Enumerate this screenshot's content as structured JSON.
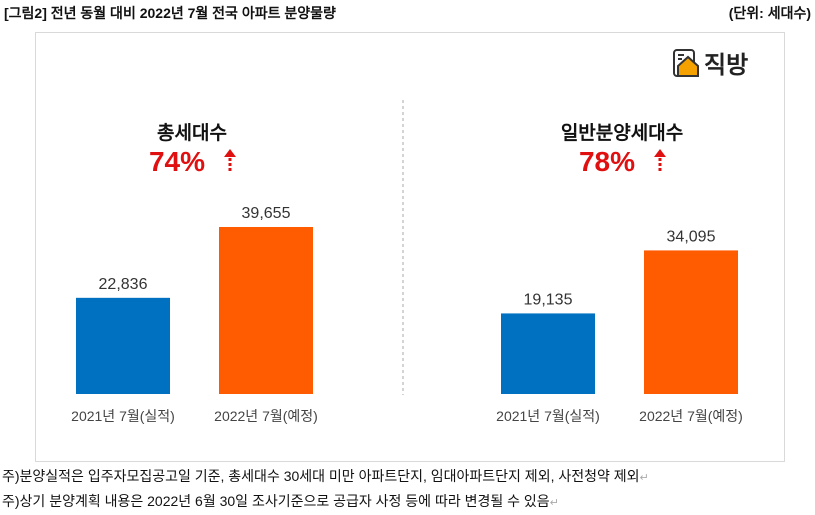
{
  "header": {
    "title": "[그림2] 전년 동월 대비 2022년 7월 전국 아파트 분양물량",
    "unit": "(단위: 세대수)"
  },
  "logo": {
    "text": "직방"
  },
  "colors": {
    "actual": "#0070C0",
    "planned": "#FF5B00",
    "increase": "#E01010"
  },
  "chart_data": [
    {
      "type": "bar",
      "title": "총세대수",
      "change": "74%",
      "change_icon": "dashed-up-arrow",
      "categories": [
        "2021년 7월(실적)",
        "2022년 7월(예정)"
      ],
      "values": [
        22836,
        39655
      ],
      "labels": [
        "22,836",
        "39,655"
      ]
    },
    {
      "type": "bar",
      "title": "일반분양세대수",
      "change": "78%",
      "change_icon": "dashed-up-arrow",
      "categories": [
        "2021년 7월(실적)",
        "2022년 7월(예정)"
      ],
      "values": [
        19135,
        34095
      ],
      "labels": [
        "19,135",
        "34,095"
      ]
    }
  ],
  "notes": [
    "주)분양실적은 입주자모집공고일 기준, 총세대수 30세대 미만 아파트단지, 임대아파트단지 제외, 사전청약 제외",
    "주)상기 분양계획 내용은 2022년 6월 30일 조사기준으로 공급자 사정 등에 따라 변경될 수 있음"
  ]
}
